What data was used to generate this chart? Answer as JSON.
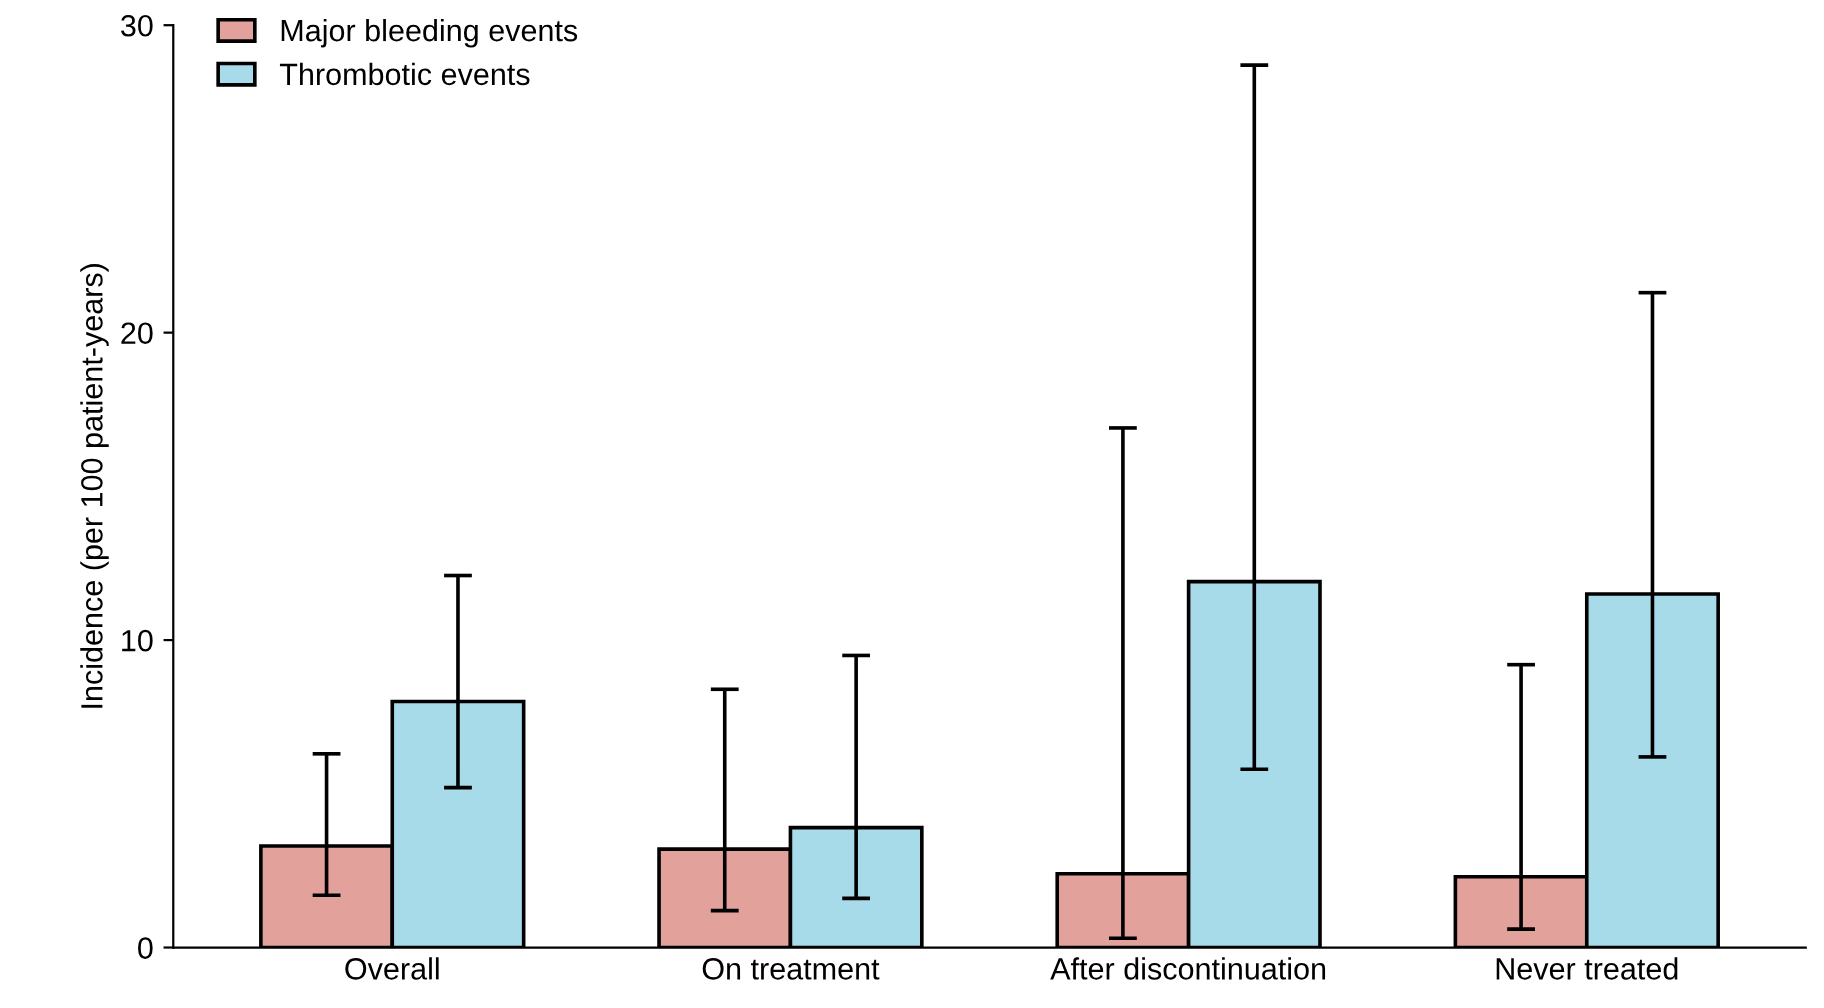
{
  "chart_data": {
    "type": "bar",
    "ylabel": "Incidence (per 100 patient-years)",
    "categories": [
      "Overall",
      "On treatment",
      "After discontinuation",
      "Never treated"
    ],
    "series": [
      {
        "name": "Major bleeding events",
        "color": "#e3a19c",
        "values": [
          3.3,
          3.2,
          2.4,
          2.3
        ],
        "errors": [
          [
            1.7,
            6.3
          ],
          [
            1.2,
            8.4
          ],
          [
            0.3,
            16.9
          ],
          [
            0.6,
            9.2
          ]
        ]
      },
      {
        "name": "Thrombotic events",
        "color": "#a7dbe9",
        "values": [
          8.0,
          3.9,
          11.9,
          11.5
        ],
        "errors": [
          [
            5.2,
            12.1
          ],
          [
            1.6,
            9.5
          ],
          [
            5.8,
            28.7
          ],
          [
            6.2,
            21.3
          ]
        ]
      }
    ],
    "ylim": [
      0,
      30
    ],
    "yticks": [
      0,
      10,
      20,
      30
    ],
    "grid": false,
    "legend": "top left"
  }
}
